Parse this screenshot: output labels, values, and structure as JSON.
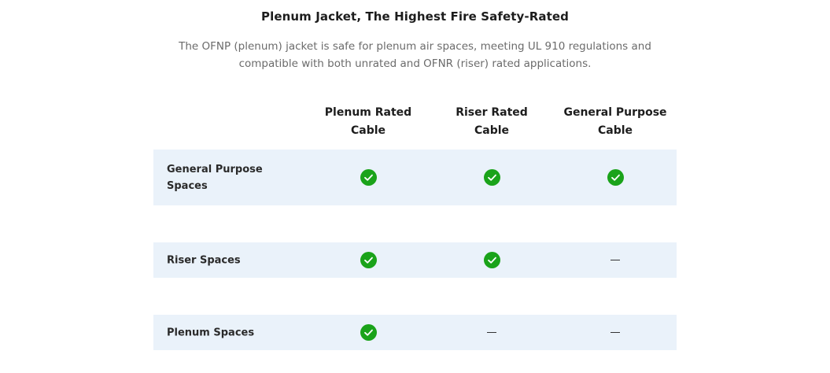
{
  "heading": {
    "title": "Plenum Jacket, The Highest Fire Safety-Rated",
    "description": "The OFNP (plenum) jacket is safe for plenum air spaces, meeting UL 910 regulations and compatible with both unrated and OFNR (riser) rated applications."
  },
  "table": {
    "columns": [
      {
        "line1": "Plenum Rated",
        "line2": "Cable"
      },
      {
        "line1": "Riser Rated",
        "line2": "Cable"
      },
      {
        "line1": "General Purpose",
        "line2": "Cable"
      }
    ],
    "rows": [
      {
        "line1": "General Purpose",
        "line2": "Spaces",
        "cells": [
          "check",
          "check",
          "check"
        ]
      },
      {
        "line1": "Riser Spaces",
        "line2": "",
        "cells": [
          "check",
          "check",
          "dash"
        ]
      },
      {
        "line1": "Plenum Spaces",
        "line2": "",
        "cells": [
          "check",
          "dash",
          "dash"
        ]
      }
    ]
  },
  "colors": {
    "check": "#1aa31a",
    "row_background": "#eaf2fa"
  },
  "icons": {
    "supported": "check-circle-icon",
    "not_supported": "dash-icon"
  }
}
